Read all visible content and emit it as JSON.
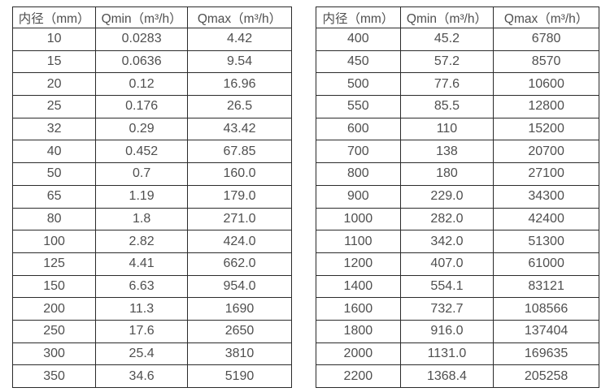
{
  "page": {
    "background_color": "#ffffff",
    "text_color": "#4f4f4f",
    "border_color": "#2b2b2b"
  },
  "tables": [
    {
      "id": "flow-range-table-small-diameters",
      "headers": [
        "内径（mm）",
        "Qmin（m³/h）",
        "Qmax（m³/h）"
      ],
      "rows": [
        [
          "10",
          "0.0283",
          "4.42"
        ],
        [
          "15",
          "0.0636",
          "9.54"
        ],
        [
          "20",
          "0.12",
          "16.96"
        ],
        [
          "25",
          "0.176",
          "26.5"
        ],
        [
          "32",
          "0.29",
          "43.42"
        ],
        [
          "40",
          "0.452",
          "67.85"
        ],
        [
          "50",
          "0.7",
          "160.0"
        ],
        [
          "65",
          "1.19",
          "179.0"
        ],
        [
          "80",
          "1.8",
          "271.0"
        ],
        [
          "100",
          "2.82",
          "424.0"
        ],
        [
          "125",
          "4.41",
          "662.0"
        ],
        [
          "150",
          "6.63",
          "954.0"
        ],
        [
          "200",
          "11.3",
          "1690"
        ],
        [
          "250",
          "17.6",
          "2650"
        ],
        [
          "300",
          "25.4",
          "3810"
        ],
        [
          "350",
          "34.6",
          "5190"
        ]
      ]
    },
    {
      "id": "flow-range-table-large-diameters",
      "headers": [
        "内径（mm）",
        "Qmin（m³/h）",
        "Qmax（m³/h）"
      ],
      "rows": [
        [
          "400",
          "45.2",
          "6780"
        ],
        [
          "450",
          "57.2",
          "8570"
        ],
        [
          "500",
          "77.6",
          "10600"
        ],
        [
          "550",
          "85.5",
          "12800"
        ],
        [
          "600",
          "110",
          "15200"
        ],
        [
          "700",
          "138",
          "20700"
        ],
        [
          "800",
          "180",
          "27100"
        ],
        [
          "900",
          "229.0",
          "34300"
        ],
        [
          "1000",
          "282.0",
          "42400"
        ],
        [
          "1100",
          "342.0",
          "51300"
        ],
        [
          "1200",
          "407.0",
          "61000"
        ],
        [
          "1400",
          "554.1",
          "83121"
        ],
        [
          "1600",
          "732.7",
          "108566"
        ],
        [
          "1800",
          "916.0",
          "137404"
        ],
        [
          "2000",
          "1131.0",
          "169635"
        ],
        [
          "2200",
          "1368.4",
          "205258"
        ]
      ]
    }
  ]
}
